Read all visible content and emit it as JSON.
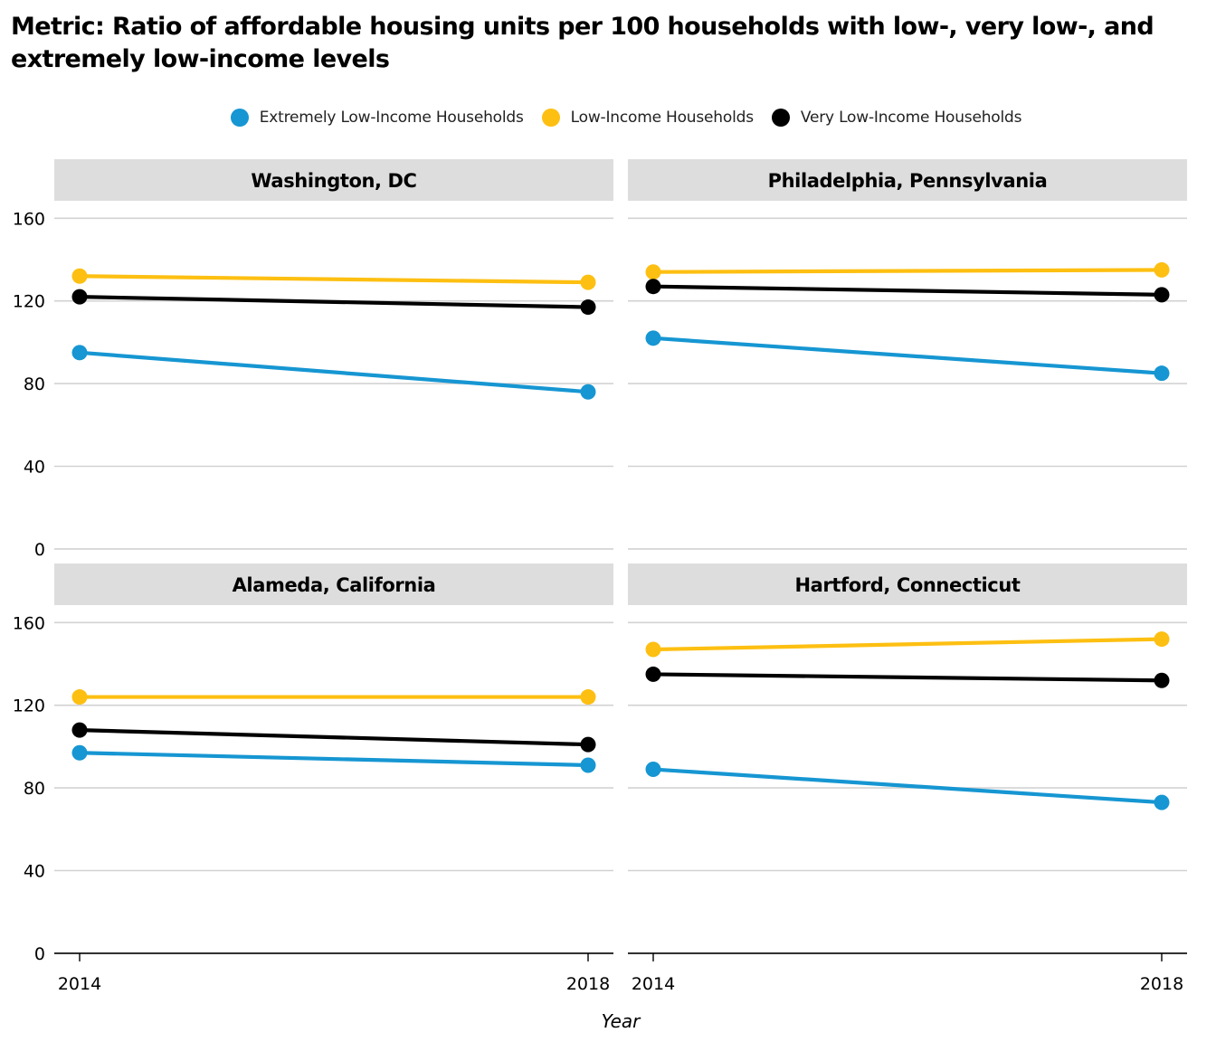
{
  "chart_data": {
    "type": "line",
    "title": "Metric: Ratio of affordable housing units per 100 households with low-, very low-, and extremely low-income levels",
    "xlabel": "Year",
    "ylabel": "",
    "x": [
      "2014",
      "2018"
    ],
    "ylim": [
      0,
      180
    ],
    "yticks": [
      "0",
      "40",
      "80",
      "120",
      "160"
    ],
    "grid": true,
    "legend_position": "top",
    "legend": [
      {
        "name": "Extremely Low-Income Households",
        "color": "#1696d2"
      },
      {
        "name": "Low-Income Households",
        "color": "#fdbf11"
      },
      {
        "name": "Very Low-Income Households",
        "color": "#000000"
      }
    ],
    "panels": [
      {
        "title": "Washington, DC",
        "series": [
          {
            "name": "Extremely Low-Income Households",
            "values": [
              95,
              76
            ]
          },
          {
            "name": "Low-Income Households",
            "values": [
              132,
              129
            ]
          },
          {
            "name": "Very Low-Income Households",
            "values": [
              122,
              117
            ]
          }
        ]
      },
      {
        "title": "Philadelphia, Pennsylvania",
        "series": [
          {
            "name": "Extremely Low-Income Households",
            "values": [
              102,
              85
            ]
          },
          {
            "name": "Low-Income Households",
            "values": [
              134,
              135
            ]
          },
          {
            "name": "Very Low-Income Households",
            "values": [
              127,
              123
            ]
          }
        ]
      },
      {
        "title": "Alameda, California",
        "series": [
          {
            "name": "Extremely Low-Income Households",
            "values": [
              97,
              91
            ]
          },
          {
            "name": "Low-Income Households",
            "values": [
              124,
              124
            ]
          },
          {
            "name": "Very Low-Income Households",
            "values": [
              108,
              101
            ]
          }
        ]
      },
      {
        "title": "Hartford, Connecticut",
        "series": [
          {
            "name": "Extremely Low-Income Households",
            "values": [
              89,
              73
            ]
          },
          {
            "name": "Low-Income Households",
            "values": [
              147,
              152
            ]
          },
          {
            "name": "Very Low-Income Households",
            "values": [
              135,
              132
            ]
          }
        ]
      }
    ]
  }
}
